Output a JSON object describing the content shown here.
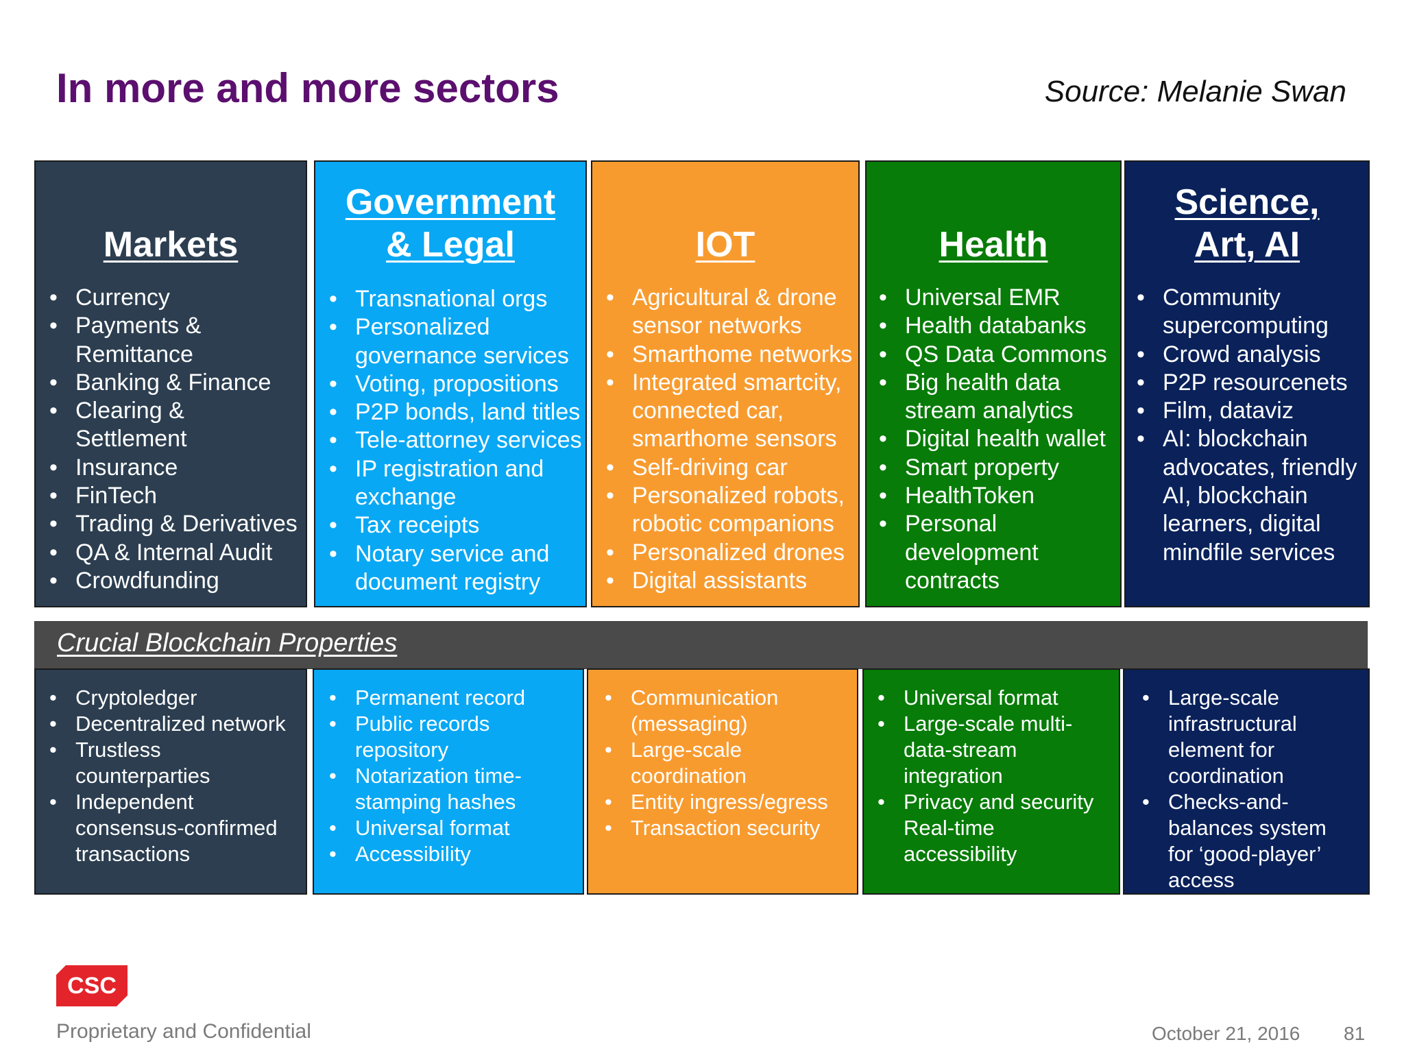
{
  "slide": {
    "title": "In more and more sectors",
    "source": "Source: Melanie Swan"
  },
  "sectors": [
    {
      "heading": "Markets",
      "items": [
        "Currency",
        "Payments &",
        "Remittance",
        "Banking & Finance",
        "Clearing &",
        "Settlement",
        "Insurance",
        "FinTech",
        "Trading & Derivatives",
        "QA & Internal Audit",
        "Crowdfunding"
      ]
    },
    {
      "heading_line1": "Government",
      "heading_line2": "& Legal",
      "items": [
        "Transnational orgs",
        "Personalized",
        "governance services",
        "Voting, propositions",
        "P2P bonds, land titles",
        "Tele-attorney services",
        "IP registration and",
        "exchange",
        "Tax receipts",
        "Notary service and",
        "document registry"
      ]
    },
    {
      "heading": "IOT",
      "items": [
        "Agricultural & drone",
        "sensor networks",
        "Smarthome networks",
        "Integrated smartcity,",
        "connected car,",
        "smarthome sensors",
        "Self-driving car",
        "Personalized robots,",
        "robotic companions",
        "Personalized drones",
        "Digital assistants"
      ]
    },
    {
      "heading": "Health",
      "items": [
        "Universal EMR",
        "Health databanks",
        "QS Data Commons",
        "Big health data",
        "stream analytics",
        "Digital health wallet",
        "Smart property",
        "HealthToken",
        "Personal",
        "development",
        "contracts"
      ]
    },
    {
      "heading_line1": "Science,",
      "heading_line2": "Art, AI",
      "items": [
        "Community",
        "supercomputing",
        "Crowd analysis",
        "P2P resourcenets",
        "Film, dataviz",
        "AI: blockchain",
        "advocates, friendly",
        "AI, blockchain",
        "learners, digital",
        "mindfile services"
      ]
    }
  ],
  "banner": {
    "label": "Crucial Blockchain Properties"
  },
  "properties": [
    {
      "items": [
        "Cryptoledger",
        "Decentralized network",
        "Trustless",
        "counterparties",
        "Independent",
        "consensus-confirmed",
        "transactions"
      ]
    },
    {
      "items": [
        "Permanent record",
        "Public records",
        "repository",
        "Notarization time-",
        "stamping hashes",
        "Universal format",
        "Accessibility"
      ]
    },
    {
      "items": [
        "Communication",
        "(messaging)",
        "Large-scale",
        "coordination",
        "Entity ingress/egress",
        "Transaction security"
      ]
    },
    {
      "items": [
        "Universal format",
        "Large-scale multi-",
        "data-stream",
        "integration",
        "Privacy and security",
        "Real-time",
        "accessibility"
      ]
    },
    {
      "items": [
        "Large-scale",
        "infrastructural",
        "element for",
        "coordination",
        "Checks-and-",
        "balances system",
        "for ‘good-player’",
        "access"
      ]
    }
  ],
  "footer": {
    "logo_text": "CSC",
    "confidential": "Proprietary and Confidential",
    "date": "October 21, 2016",
    "page_number": "81"
  },
  "colors": {
    "title": "#5b0f6e",
    "markets": "#2c3e50",
    "government": "#08a8f4",
    "iot": "#f89b2f",
    "health": "#077c08",
    "science": "#0a215a",
    "banner": "#4a4a4a",
    "logo": "#e3242b"
  }
}
